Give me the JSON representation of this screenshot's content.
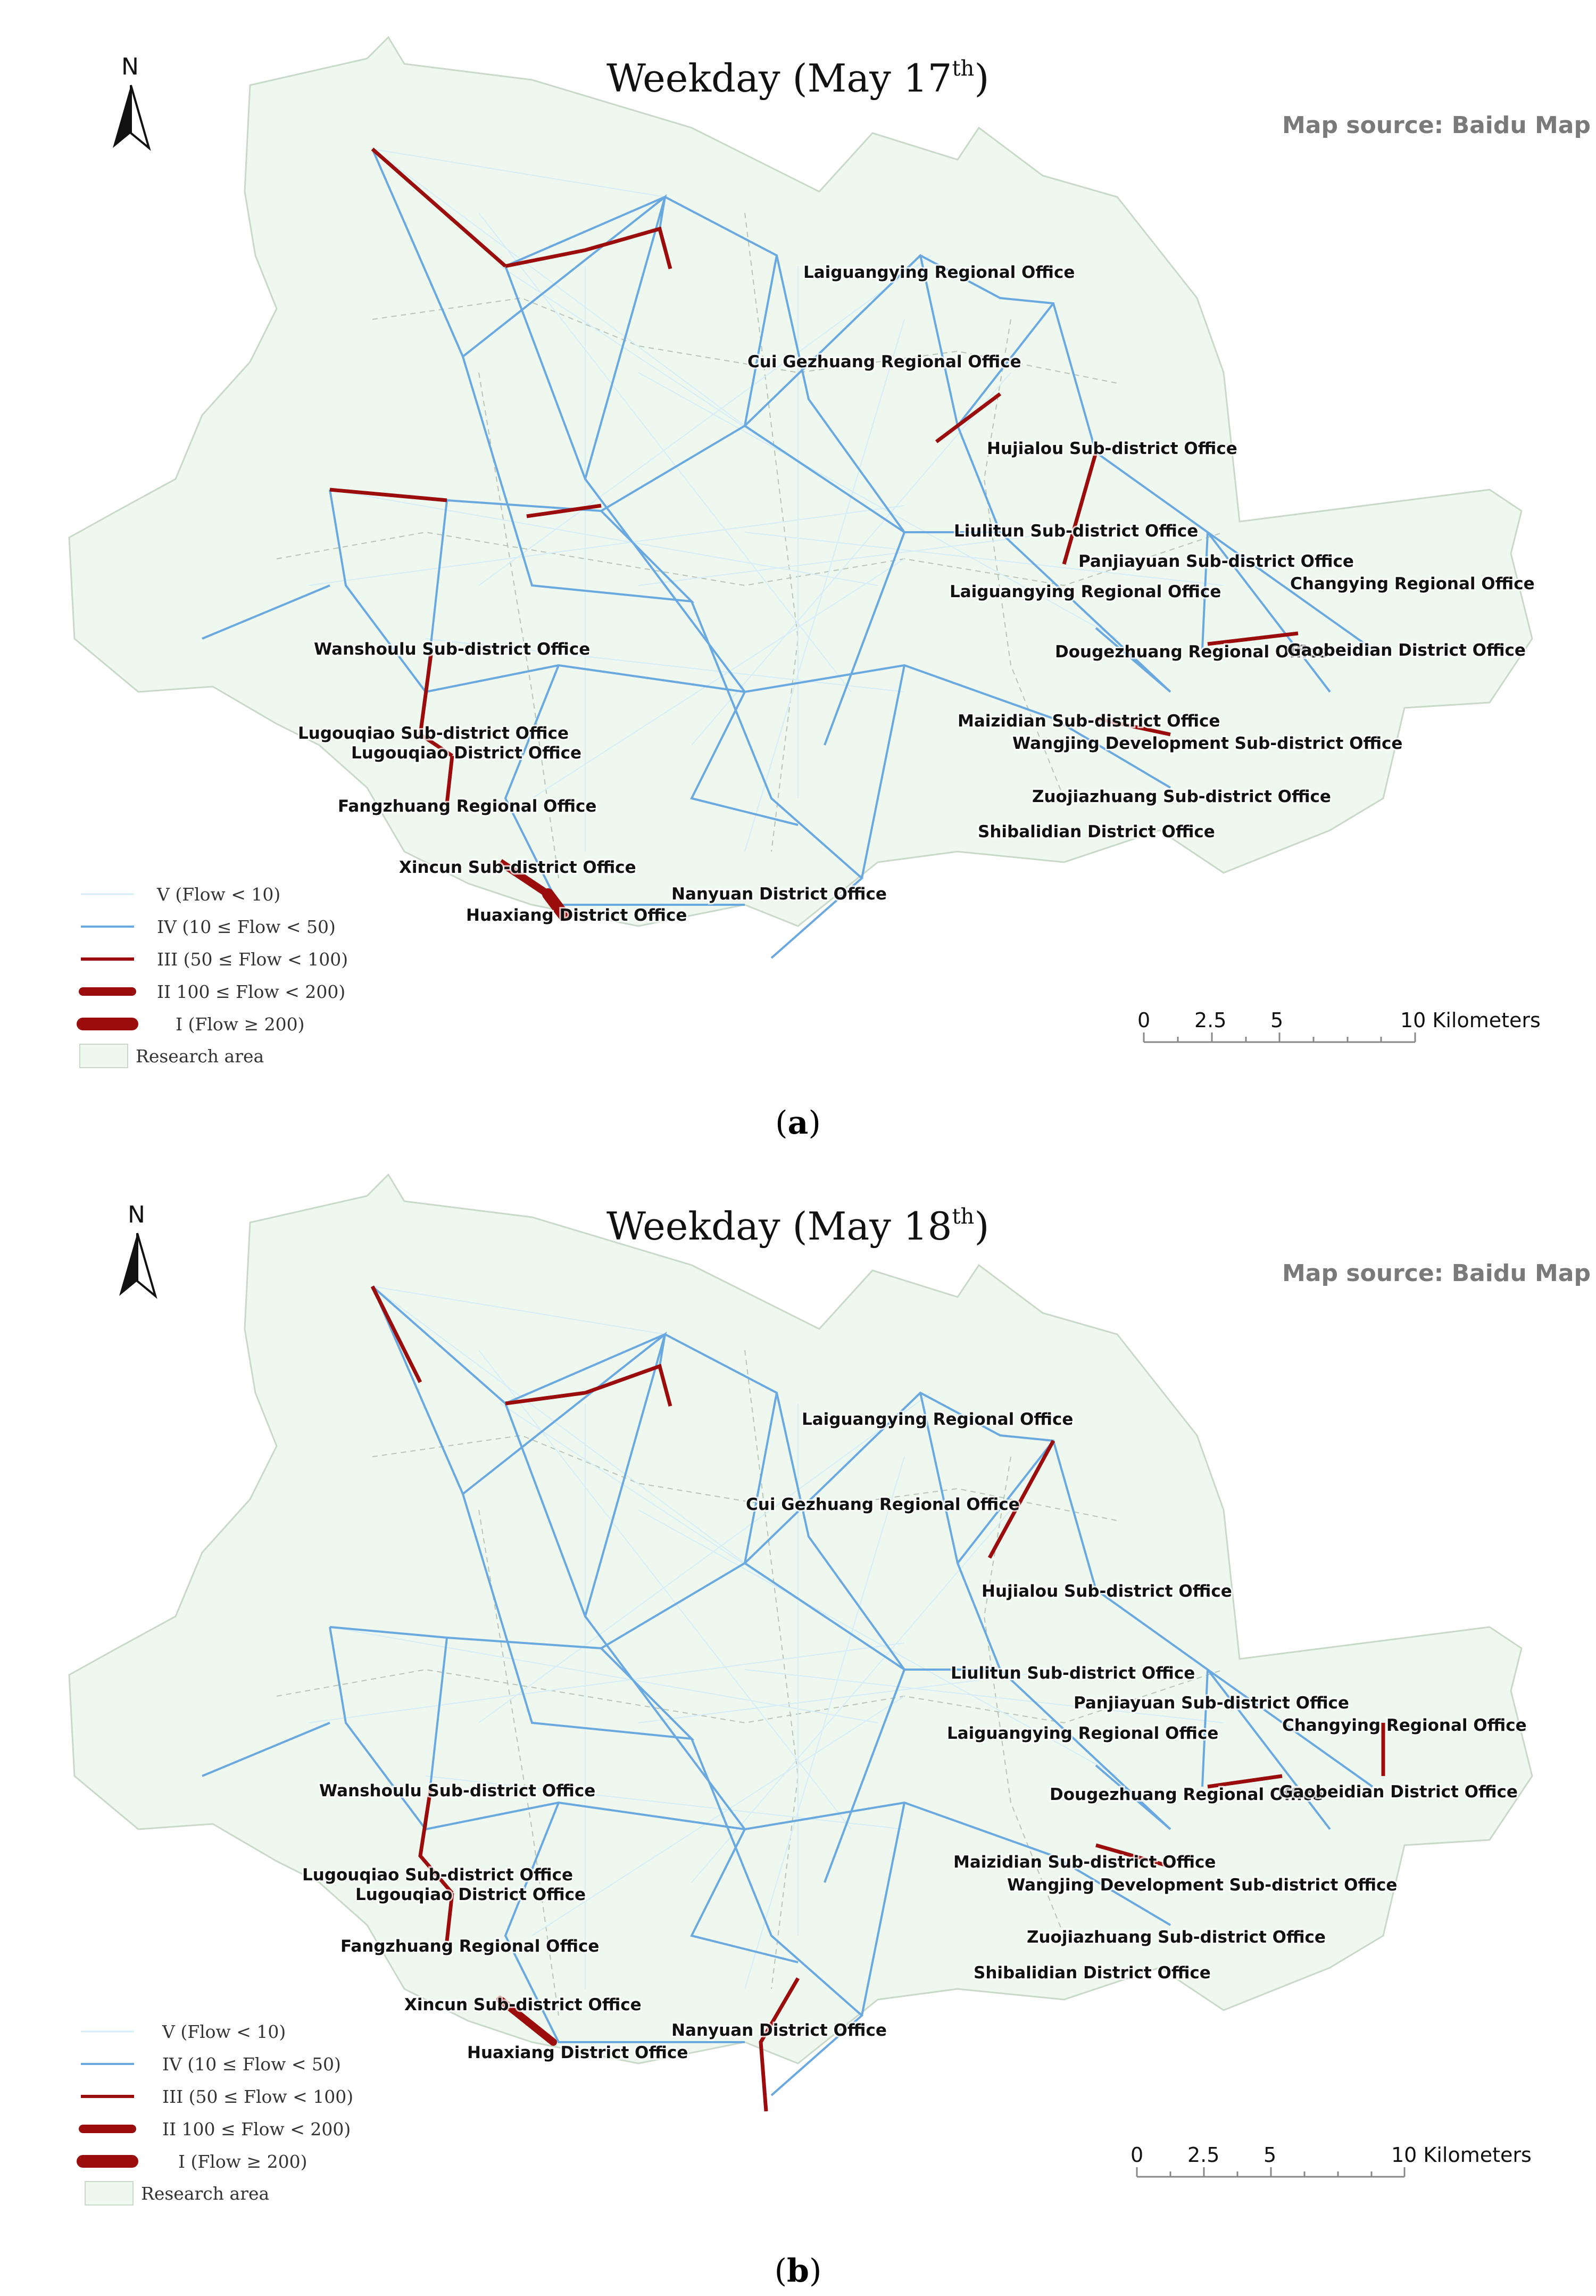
{
  "map_source_label": "Map source: Baidu Map",
  "north_label": "N",
  "legend": {
    "v": "V (Flow < 10)",
    "iv": "IV (10 ≤ Flow < 50)",
    "iii": "III (50 ≤ Flow < 100)",
    "ii": "II 100 ≤ Flow < 200)",
    "i": "I (Flow ≥ 200)",
    "area": "Research area"
  },
  "scale": {
    "t0": "0",
    "t1": "2.5",
    "t2": "5",
    "t3": "10 Kilometers"
  },
  "colors": {
    "research_area_fill": "#eef8ee",
    "flow_v": "#d6ecf7",
    "flow_iv": "#6aa8e0",
    "flow_iii_i": "#9b0d0d"
  },
  "panels": [
    {
      "id": "a",
      "caption_letter": "a",
      "title_main": "Weekday (May 17",
      "title_sup": "th",
      "title_close": ")",
      "labels": [
        "Laiguangying Regional Office",
        "Cui Gezhuang Regional Office",
        "Hujialou Sub-district Office",
        "Liulitun Sub-district Office",
        "Panjiayuan Sub-district Office",
        "Changying Regional Office",
        "Laiguangying Regional Office",
        "Wanshoulu Sub-district Office",
        "Dougezhuang Regional Office",
        "Gaobeidian District Office",
        "Maizidian Sub-district Office",
        "Lugouqiao Sub-district Office",
        "Wangjing Development Sub-district Office",
        "Lugouqiao District Office",
        "Fangzhuang Regional Office",
        "Zuojiazhuang Sub-district Office",
        "Shibalidian District Office",
        "Xincun Sub-district Office",
        "Nanyuan District Office",
        "Huaxiang District Office"
      ]
    },
    {
      "id": "b",
      "caption_letter": "b",
      "title_main": "Weekday (May 18",
      "title_sup": "th",
      "title_close": ")",
      "labels": [
        "Laiguangying Regional Office",
        "Cui Gezhuang Regional Office",
        "Hujialou Sub-district Office",
        "Liulitun Sub-district Office",
        "Panjiayuan Sub-district Office",
        "Changying Regional Office",
        "Laiguangying Regional Office",
        "Wanshoulu Sub-district Office",
        "Dougezhuang Regional Office",
        "Gaobeidian District Office",
        "Maizidian Sub-district Office",
        "Lugouqiao Sub-district Office",
        "Wangjing Development Sub-district Office",
        "Lugouqiao District Office",
        "Fangzhuang Regional Office",
        "Zuojiazhuang Sub-district Office",
        "Shibalidian District Office",
        "Xincun Sub-district Office",
        "Nanyuan District Office",
        "Huaxiang District Office"
      ]
    }
  ]
}
